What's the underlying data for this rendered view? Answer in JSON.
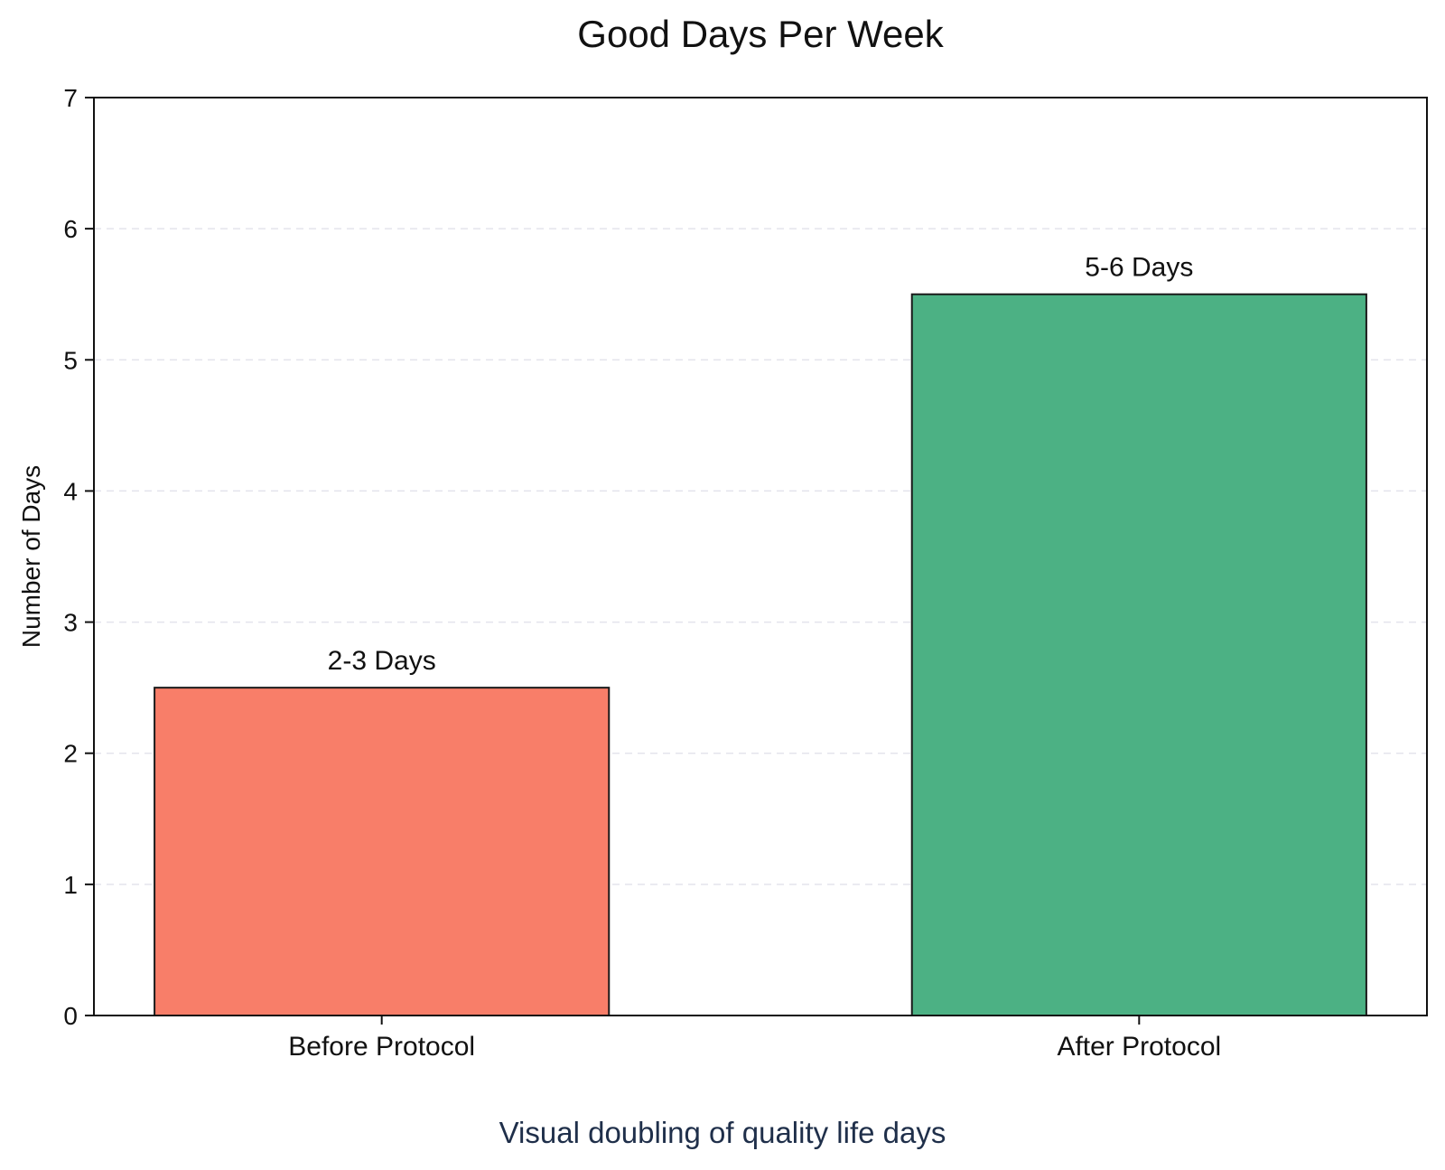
{
  "chart_data": {
    "type": "bar",
    "title": "Good Days Per Week",
    "subtitle": "Visual doubling of quality life days",
    "xlabel": "",
    "ylabel": "Number of Days",
    "categories": [
      "Before Protocol",
      "After Protocol"
    ],
    "values": [
      2.5,
      5.5
    ],
    "data_labels": [
      "2-3 Days",
      "5-6 Days"
    ],
    "ylim": [
      0,
      7
    ],
    "yticks": [
      0,
      1,
      2,
      3,
      4,
      5,
      6,
      7
    ],
    "grid": true,
    "legend": "none",
    "colors": {
      "bars": [
        "#F87E69",
        "#4CB184"
      ],
      "bar_edge": "#1a1a1a",
      "grid": "#e4e4ec",
      "axis": "#111111",
      "text": "#111111",
      "subtitle": "#1f2f4a"
    }
  }
}
